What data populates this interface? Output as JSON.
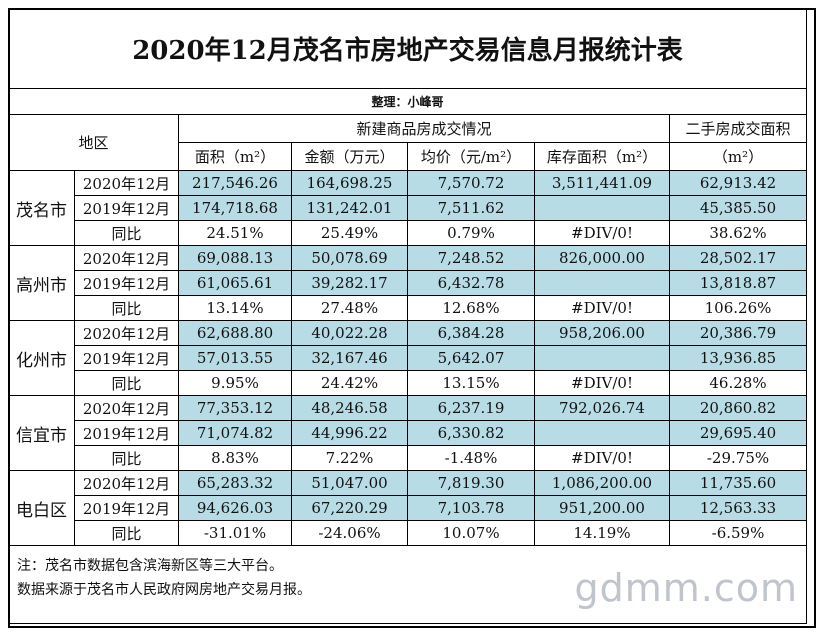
{
  "title": "2020年12月茂名市房地产交易信息月报统计表",
  "compiler": "整理：小峰哥",
  "headers": {
    "region": "地区",
    "new_group": "新建商品房成交情况",
    "second_group": "二手房成交面积",
    "area": "面积（m²）",
    "amount": "金额（万元）",
    "avg_price": "均价（元/m²）",
    "inventory": "库存面积（m²）",
    "second_unit": "（m²）"
  },
  "cities": [
    {
      "name": "茂名市",
      "rows": [
        {
          "period": "2020年12月",
          "area": "217,546.26",
          "amount": "164,698.25",
          "price": "7,570.72",
          "inventory": "3,511,441.09",
          "second": "62,913.42"
        },
        {
          "period": "2019年12月",
          "area": "174,718.68",
          "amount": "131,242.01",
          "price": "7,511.62",
          "inventory": "",
          "second": "45,385.50"
        },
        {
          "period": "同比",
          "area": "24.51%",
          "amount": "25.49%",
          "price": "0.79%",
          "inventory": "#DIV/0!",
          "second": "38.62%"
        }
      ]
    },
    {
      "name": "高州市",
      "rows": [
        {
          "period": "2020年12月",
          "area": "69,088.13",
          "amount": "50,078.69",
          "price": "7,248.52",
          "inventory": "826,000.00",
          "second": "28,502.17"
        },
        {
          "period": "2019年12月",
          "area": "61,065.61",
          "amount": "39,282.17",
          "price": "6,432.78",
          "inventory": "",
          "second": "13,818.87"
        },
        {
          "period": "同比",
          "area": "13.14%",
          "amount": "27.48%",
          "price": "12.68%",
          "inventory": "#DIV/0!",
          "second": "106.26%"
        }
      ]
    },
    {
      "name": "化州市",
      "rows": [
        {
          "period": "2020年12月",
          "area": "62,688.80",
          "amount": "40,022.28",
          "price": "6,384.28",
          "inventory": "958,206.00",
          "second": "20,386.79"
        },
        {
          "period": "2019年12月",
          "area": "57,013.55",
          "amount": "32,167.46",
          "price": "5,642.07",
          "inventory": "",
          "second": "13,936.85"
        },
        {
          "period": "同比",
          "area": "9.95%",
          "amount": "24.42%",
          "price": "13.15%",
          "inventory": "#DIV/0!",
          "second": "46.28%"
        }
      ]
    },
    {
      "name": "信宜市",
      "rows": [
        {
          "period": "2020年12月",
          "area": "77,353.12",
          "amount": "48,246.58",
          "price": "6,237.19",
          "inventory": "792,026.74",
          "second": "20,860.82"
        },
        {
          "period": "2019年12月",
          "area": "71,074.82",
          "amount": "44,996.22",
          "price": "6,330.82",
          "inventory": "",
          "second": "29,695.40"
        },
        {
          "period": "同比",
          "area": "8.83%",
          "amount": "7.22%",
          "price": "-1.48%",
          "inventory": "#DIV/0!",
          "second": "-29.75%"
        }
      ]
    },
    {
      "name": "电白区",
      "rows": [
        {
          "period": "2020年12月",
          "area": "65,283.32",
          "amount": "51,047.00",
          "price": "7,819.30",
          "inventory": "1,086,200.00",
          "second": "11,735.60"
        },
        {
          "period": "2019年12月",
          "area": "94,626.03",
          "amount": "67,220.29",
          "price": "7,103.78",
          "inventory": "951,200.00",
          "second": "12,563.33"
        },
        {
          "period": "同比",
          "area": "-31.01%",
          "amount": "-24.06%",
          "price": "10.07%",
          "inventory": "14.19%",
          "second": "-6.59%"
        }
      ]
    }
  ],
  "notes": [
    "注：茂名市数据包含滨海新区等三大平台。",
    "数据来源于茂名市人民政府网房地产交易月报。"
  ],
  "watermark": "gdmm.com",
  "colors": {
    "highlight": "#b8dce6",
    "border": "#000000"
  }
}
